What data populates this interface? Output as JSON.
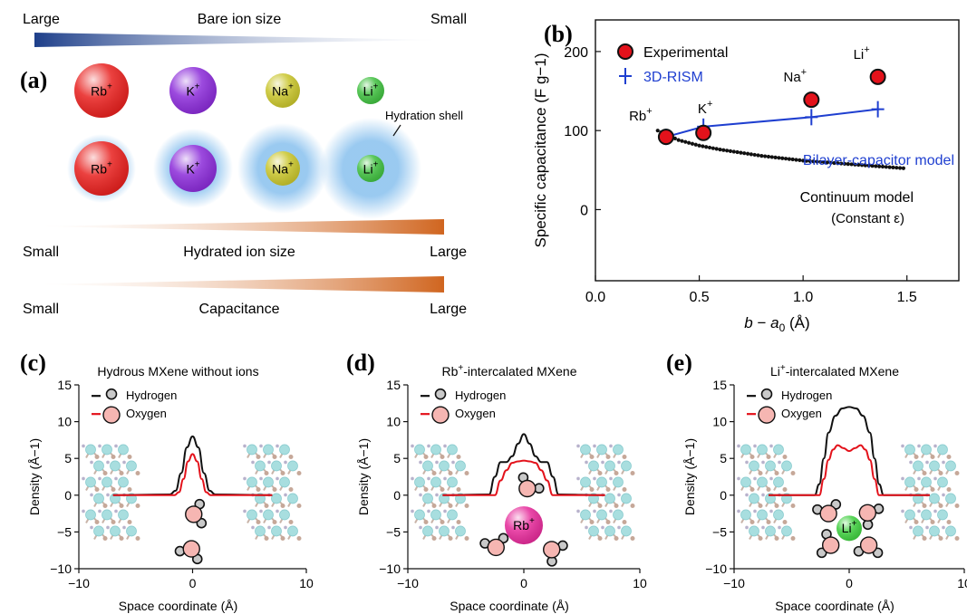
{
  "panel_labels": {
    "a": "(a)",
    "b": "(b)",
    "c": "(c)",
    "d": "(d)",
    "e": "(e)"
  },
  "panel_a": {
    "bare_ion": {
      "title": "Bare ion size",
      "left": "Large",
      "right": "Small"
    },
    "hydrated_ion": {
      "title": "Hydrated ion size",
      "left": "Small",
      "right": "Large"
    },
    "capacitance": {
      "title": "Capacitance",
      "left": "Small",
      "right": "Large"
    },
    "hydration_shell_label": "Hydration shell",
    "ions": [
      {
        "symbol": "Rb",
        "charge": "+",
        "color": "#e8201e"
      },
      {
        "symbol": "K",
        "charge": "+",
        "color": "#8b2bd9"
      },
      {
        "symbol": "Na",
        "charge": "+",
        "color": "#c9c52b"
      },
      {
        "symbol": "Li",
        "charge": "+",
        "color": "#3fbf3f"
      }
    ],
    "colors": {
      "bare_bar": "#1e3f8a",
      "hydrated_bar": "#d0651f",
      "shell": "#8fc4ef"
    }
  },
  "chart_data": [
    {
      "panel": "b",
      "type": "scatter",
      "xlabel": "b − a0 (Å)",
      "ylabel": "Specific capacitance (F g−1)",
      "xlim": [
        0,
        1.75
      ],
      "ylim": [
        -90,
        240
      ],
      "xticks": [
        "0.0",
        "0.5",
        "1.0",
        "1.5"
      ],
      "yticks": [
        "0",
        "100",
        "200"
      ],
      "legend": {
        "placement": "top-left",
        "entries": [
          "Experimental",
          "3D-RISM"
        ]
      },
      "series": [
        {
          "name": "Experimental",
          "color": "#e3121b",
          "points": [
            {
              "x": 0.34,
              "y": 92,
              "label": "Rb+"
            },
            {
              "x": 0.52,
              "y": 97,
              "label": "K+"
            },
            {
              "x": 1.04,
              "y": 139,
              "label": "Na+"
            },
            {
              "x": 1.36,
              "y": 168,
              "label": "Li+"
            }
          ]
        },
        {
          "name": "3D-RISM",
          "color": "#1f3fd0",
          "x": [
            0.34,
            0.52,
            1.04,
            1.36
          ],
          "y": [
            92,
            105,
            117,
            127
          ]
        },
        {
          "name": "Continuum model",
          "color": "#111111",
          "x": [
            0.3,
            0.4,
            0.5,
            0.6,
            0.7,
            0.8,
            0.9,
            1.0,
            1.1,
            1.2,
            1.3,
            1.4,
            1.5
          ],
          "y": [
            100,
            88,
            81,
            76,
            72,
            68,
            65,
            62,
            60,
            58,
            56,
            54,
            52
          ]
        }
      ],
      "annotations": {
        "bilayer": "Bilayer-capacitor model",
        "continuum": "Continuum model",
        "constant": "(Constant ε)"
      }
    },
    {
      "panel": "c",
      "type": "line",
      "title": "Hydrous MXene without ions",
      "xlabel": "Space coordinate (Å)",
      "ylabel": "Density (Å−1)",
      "xlim": [
        -10,
        10
      ],
      "ylim": [
        -10,
        15
      ],
      "xticks": [
        "−10",
        "0",
        "10"
      ],
      "yticks": [
        "−10",
        "−5",
        "0",
        "5",
        "10",
        "15"
      ],
      "legend": {
        "placement": "top-left",
        "entries": [
          "Hydrogen",
          "Oxygen"
        ]
      },
      "series": [
        {
          "name": "Hydrogen",
          "color": "#111111",
          "x": [
            -7,
            -2,
            -1.5,
            -1,
            -0.5,
            0,
            0.5,
            1,
            1.5,
            2,
            7
          ],
          "y": [
            0,
            0.1,
            0.6,
            3,
            6.5,
            8,
            6.5,
            3,
            0.6,
            0.1,
            0
          ]
        },
        {
          "name": "Oxygen",
          "color": "#e3121b",
          "x": [
            -7,
            -1.6,
            -1.2,
            -0.8,
            -0.4,
            0,
            0.4,
            0.8,
            1.2,
            1.6,
            7
          ],
          "y": [
            0,
            0,
            0.4,
            2.2,
            4.6,
            5.6,
            4.6,
            2.2,
            0.4,
            0,
            0
          ]
        }
      ]
    },
    {
      "panel": "d",
      "type": "line",
      "title": "Rb+-intercalated MXene",
      "ion": {
        "symbol": "Rb",
        "charge": "+",
        "color": "#e62a9a"
      },
      "xlabel": "Space coordinate (Å)",
      "ylabel": "Density (Å−1)",
      "xlim": [
        -10,
        10
      ],
      "ylim": [
        -10,
        15
      ],
      "xticks": [
        "−10",
        "0",
        "10"
      ],
      "yticks": [
        "−10",
        "−5",
        "0",
        "5",
        "10",
        "15"
      ],
      "legend": {
        "placement": "top-left",
        "entries": [
          "Hydrogen",
          "Oxygen"
        ]
      },
      "series": [
        {
          "name": "Hydrogen",
          "color": "#111111",
          "x": [
            -7,
            -3,
            -2.5,
            -2,
            -1.5,
            -1,
            -0.5,
            0,
            0.5,
            1,
            1.5,
            2,
            2.5,
            3,
            7
          ],
          "y": [
            0,
            0.1,
            2.5,
            4.5,
            4.5,
            5.3,
            7,
            8.3,
            7,
            5.3,
            4.5,
            4.5,
            2.5,
            0.1,
            0
          ]
        },
        {
          "name": "Oxygen",
          "color": "#e3121b",
          "x": [
            -7,
            -2.5,
            -2,
            -1.5,
            -1,
            -0.5,
            0,
            0.5,
            1,
            1.5,
            2,
            2.5,
            7
          ],
          "y": [
            0,
            0,
            2,
            3.4,
            4.4,
            4.6,
            4.7,
            4.6,
            4.4,
            3.4,
            2,
            0,
            0
          ]
        }
      ]
    },
    {
      "panel": "e",
      "type": "line",
      "title": "Li+-intercalated MXene",
      "ion": {
        "symbol": "Li",
        "charge": "+",
        "color": "#3fcf3f"
      },
      "xlabel": "Space coordinate (Å)",
      "ylabel": "Density (Å−1)",
      "xlim": [
        -10,
        10
      ],
      "ylim": [
        -10,
        15
      ],
      "xticks": [
        "−10",
        "0",
        "10"
      ],
      "yticks": [
        "−10",
        "−5",
        "0",
        "5",
        "10",
        "15"
      ],
      "legend": {
        "placement": "top-left",
        "entries": [
          "Hydrogen",
          "Oxygen"
        ]
      },
      "series": [
        {
          "name": "Hydrogen",
          "color": "#111111",
          "x": [
            -7,
            -3,
            -2.6,
            -2.2,
            -1.8,
            -1.2,
            -0.6,
            0,
            0.6,
            1.2,
            1.8,
            2.2,
            2.6,
            3,
            7
          ],
          "y": [
            0,
            0,
            1.5,
            5,
            8.5,
            10.8,
            11.8,
            12,
            11.8,
            10.8,
            8.5,
            5,
            1.5,
            0,
            0
          ]
        },
        {
          "name": "Oxygen",
          "color": "#e3121b",
          "x": [
            -7,
            -2.6,
            -2.2,
            -1.8,
            -1.4,
            -1,
            -0.5,
            0,
            0.5,
            1,
            1.4,
            1.8,
            2.2,
            2.6,
            7
          ],
          "y": [
            0,
            0,
            2.2,
            4.8,
            6.2,
            6.8,
            6.4,
            6,
            6.4,
            6.8,
            6.2,
            4.8,
            2.2,
            0,
            0
          ]
        }
      ]
    }
  ]
}
